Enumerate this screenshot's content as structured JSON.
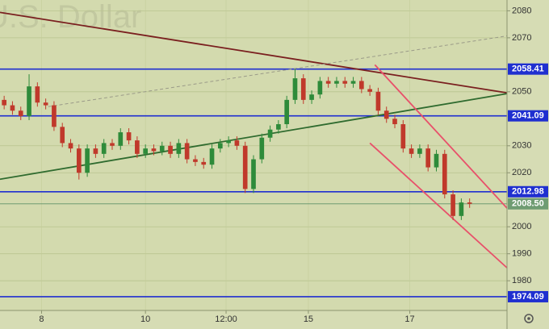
{
  "chart_data": {
    "type": "candlestick",
    "watermark": "U.S. Dollar",
    "ylim": [
      1969,
      2084
    ],
    "yticks": [
      1980,
      1990,
      2000,
      2020,
      2030,
      2050,
      2070,
      2080
    ],
    "xlim": [
      -0.5,
      60.5
    ],
    "xticks": [
      {
        "value": 4.5,
        "label": "8"
      },
      {
        "value": 17,
        "label": "10"
      },
      {
        "value": 26.7,
        "label": "12:00"
      },
      {
        "value": 36.6,
        "label": "15"
      },
      {
        "value": 48.8,
        "label": "17"
      }
    ],
    "grid": true,
    "up_color": "#2e8b3a",
    "down_color": "#c0392b",
    "open": [
      2047,
      2045,
      2043,
      2041,
      2052,
      2046,
      2045,
      2037,
      2031,
      2029,
      2020,
      2029,
      2027,
      2031,
      2030,
      2035,
      2032,
      2027,
      2029,
      2028,
      2030,
      2027,
      2031,
      2025,
      2024,
      2023,
      2029,
      2031,
      2032,
      2030,
      2014,
      2025,
      2033,
      2036,
      2038,
      2047,
      2055,
      2047,
      2049,
      2054,
      2053,
      2054,
      2053,
      2054,
      2051,
      2050,
      2043,
      2040,
      2038,
      2029,
      2027,
      2029,
      2022,
      2027,
      2012,
      2004,
      2009
    ],
    "high": [
      2048.5,
      2046.5,
      2044.5,
      2056.5,
      2053.5,
      2047.5,
      2046.5,
      2038.5,
      2032.5,
      2030.5,
      2030.5,
      2030.5,
      2032.5,
      2032.5,
      2036.5,
      2036.5,
      2033.5,
      2030.5,
      2030.5,
      2031.5,
      2031.5,
      2032.5,
      2032.5,
      2026.5,
      2025.5,
      2030.5,
      2032.5,
      2033.5,
      2033.5,
      2031.5,
      2026.5,
      2034.5,
      2037.5,
      2039.5,
      2048.5,
      2058.5,
      2056.5,
      2050.5,
      2055.5,
      2055.5,
      2055.5,
      2055.5,
      2055.5,
      2055.5,
      2052.5,
      2051.5,
      2044.5,
      2041.5,
      2039.5,
      2030.5,
      2030.5,
      2030.5,
      2028.5,
      2028.5,
      2013.5,
      2010.5,
      2010.5
    ],
    "low": [
      2043.5,
      2041.5,
      2039.5,
      2039.5,
      2044.5,
      2043.5,
      2035.5,
      2029.5,
      2027.5,
      2017.5,
      2018.5,
      2025.5,
      2025.5,
      2028.5,
      2028.5,
      2030.5,
      2025.5,
      2025.5,
      2026.5,
      2026.5,
      2025.5,
      2025.5,
      2023.5,
      2022.5,
      2021.5,
      2021.5,
      2027.5,
      2029.5,
      2028.5,
      2012.5,
      2012.5,
      2023.5,
      2031.5,
      2034.5,
      2036.5,
      2045.5,
      2045.5,
      2045.5,
      2047.5,
      2051.5,
      2051.5,
      2051.5,
      2051.5,
      2049.5,
      2048.5,
      2041.5,
      2038.5,
      2036.5,
      2027.5,
      2025.5,
      2025.5,
      2020.5,
      2020.5,
      2010.5,
      2002.5,
      2002.5,
      2007
    ],
    "close": [
      2045,
      2043,
      2041,
      2052,
      2046,
      2045,
      2037,
      2031,
      2029,
      2020,
      2029,
      2027,
      2031,
      2030,
      2035,
      2032,
      2027,
      2029,
      2028,
      2030,
      2027,
      2031,
      2025,
      2024,
      2023,
      2029,
      2031,
      2032,
      2030,
      2014,
      2025,
      2033,
      2036,
      2038,
      2047,
      2055,
      2047,
      2049,
      2054,
      2053,
      2054,
      2053,
      2054,
      2051,
      2050,
      2043,
      2040,
      2038,
      2029,
      2027,
      2029,
      2022,
      2027,
      2012,
      2004,
      2009,
      2008.5
    ],
    "levels": [
      {
        "value": 2058.41,
        "color": "#1f2fd0"
      },
      {
        "value": 2041.09,
        "color": "#1f2fd0"
      },
      {
        "value": 2012.98,
        "color": "#1f2fd0"
      },
      {
        "value": 1974.09,
        "color": "#1f2fd0"
      },
      {
        "value": 2008.5,
        "label": "2008.50",
        "color": "#6f9c72"
      }
    ],
    "trendlines": [
      {
        "x": [
          -0.5,
          60.5
        ],
        "y": [
          2079.4,
          2049.6
        ],
        "color": "#7a1f1f",
        "dashed": false
      },
      {
        "x": [
          -0.5,
          60.5
        ],
        "y": [
          2017.6,
          2049.3
        ],
        "color": "#2f6b2f",
        "dashed": false
      },
      {
        "x": [
          5.3,
          60.5
        ],
        "y": [
          2044.5,
          2070.7
        ],
        "color": "#9a9a88",
        "dashed": true
      },
      {
        "x": [
          44.6,
          60.5
        ],
        "y": [
          2060,
          2006.9
        ],
        "color": "#e8506a",
        "dashed": false
      },
      {
        "x": [
          44,
          60.5
        ],
        "y": [
          2031,
          1984.8
        ],
        "color": "#e8506a",
        "dashed": false
      }
    ]
  }
}
